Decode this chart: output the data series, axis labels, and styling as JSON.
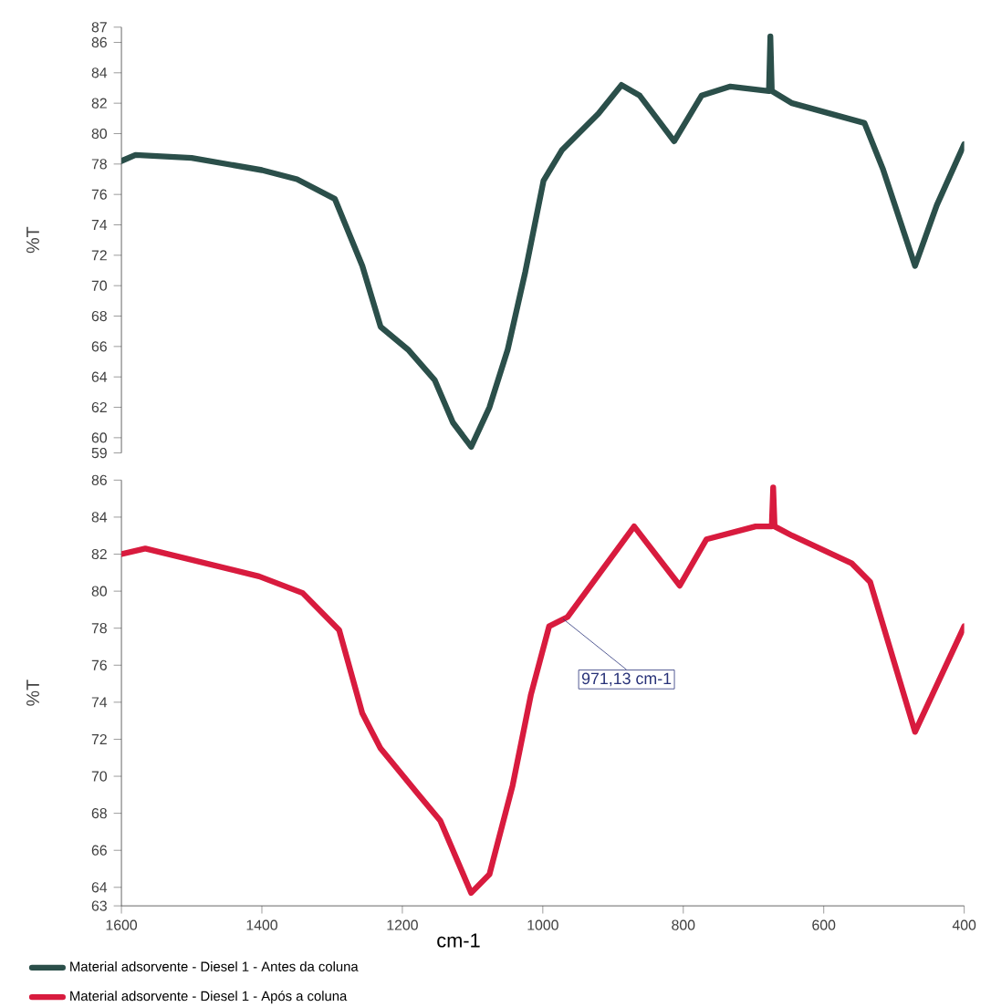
{
  "chart_data": [
    {
      "type": "line",
      "ylabel": "%T",
      "xlim": [
        1600,
        400
      ],
      "ylim": [
        59,
        87
      ],
      "xticks": [
        1600,
        1400,
        1200,
        1000,
        800,
        600,
        400
      ],
      "yticks": [
        59,
        60,
        62,
        64,
        66,
        68,
        70,
        72,
        74,
        76,
        78,
        80,
        82,
        84,
        86,
        87
      ],
      "tick_labels": "y",
      "legend": "bottom",
      "series": [
        {
          "name": "Material adsorvente - Diesel 1 - Antes da coluna",
          "color": "#2b4f4a",
          "x": [
            1600,
            1580,
            1500,
            1400,
            1350,
            1296,
            1257,
            1231,
            1192,
            1154,
            1128,
            1102,
            1076,
            1050,
            1025,
            999,
            973,
            921,
            888,
            862,
            813,
            774,
            733,
            678,
            676,
            674,
            645,
            542,
            516,
            470,
            439,
            400
          ],
          "values": [
            78.2,
            78.6,
            78.4,
            77.6,
            77.0,
            75.7,
            71.3,
            67.3,
            65.8,
            63.8,
            61.0,
            59.4,
            62.0,
            65.8,
            70.9,
            76.9,
            78.9,
            81.3,
            83.2,
            82.5,
            79.5,
            82.5,
            83.1,
            82.8,
            86.4,
            82.8,
            82.0,
            80.7,
            77.7,
            71.3,
            75.3,
            79.3
          ]
        }
      ]
    },
    {
      "type": "line",
      "ylabel": "%T",
      "xlabel": "cm-1",
      "xlim": [
        1600,
        400
      ],
      "ylim": [
        63,
        86
      ],
      "xticks": [
        1600,
        1400,
        1200,
        1000,
        800,
        600,
        400
      ],
      "yticks": [
        63,
        64,
        66,
        68,
        70,
        72,
        74,
        76,
        78,
        80,
        82,
        84,
        86
      ],
      "legend": "bottom",
      "annotations": [
        {
          "text": "971,13 cm-1",
          "x": 971.13,
          "y": 78.5
        }
      ],
      "series": [
        {
          "name": "Material adsorvente - Diesel 1 - Após a coluna",
          "color": "#d81b3e",
          "x": [
            1600,
            1566,
            1404,
            1342,
            1290,
            1257,
            1231,
            1179,
            1146,
            1102,
            1076,
            1043,
            1017,
            991,
            965,
            870,
            805,
            767,
            697,
            674,
            672,
            670,
            645,
            560,
            534,
            470,
            400
          ],
          "values": [
            82.0,
            82.3,
            80.8,
            79.9,
            77.9,
            73.4,
            71.5,
            69.1,
            67.6,
            63.7,
            64.7,
            69.5,
            74.4,
            78.1,
            78.6,
            83.5,
            80.3,
            82.8,
            83.5,
            83.5,
            85.6,
            83.5,
            83.0,
            81.5,
            80.5,
            72.4,
            78.1
          ]
        }
      ]
    }
  ]
}
